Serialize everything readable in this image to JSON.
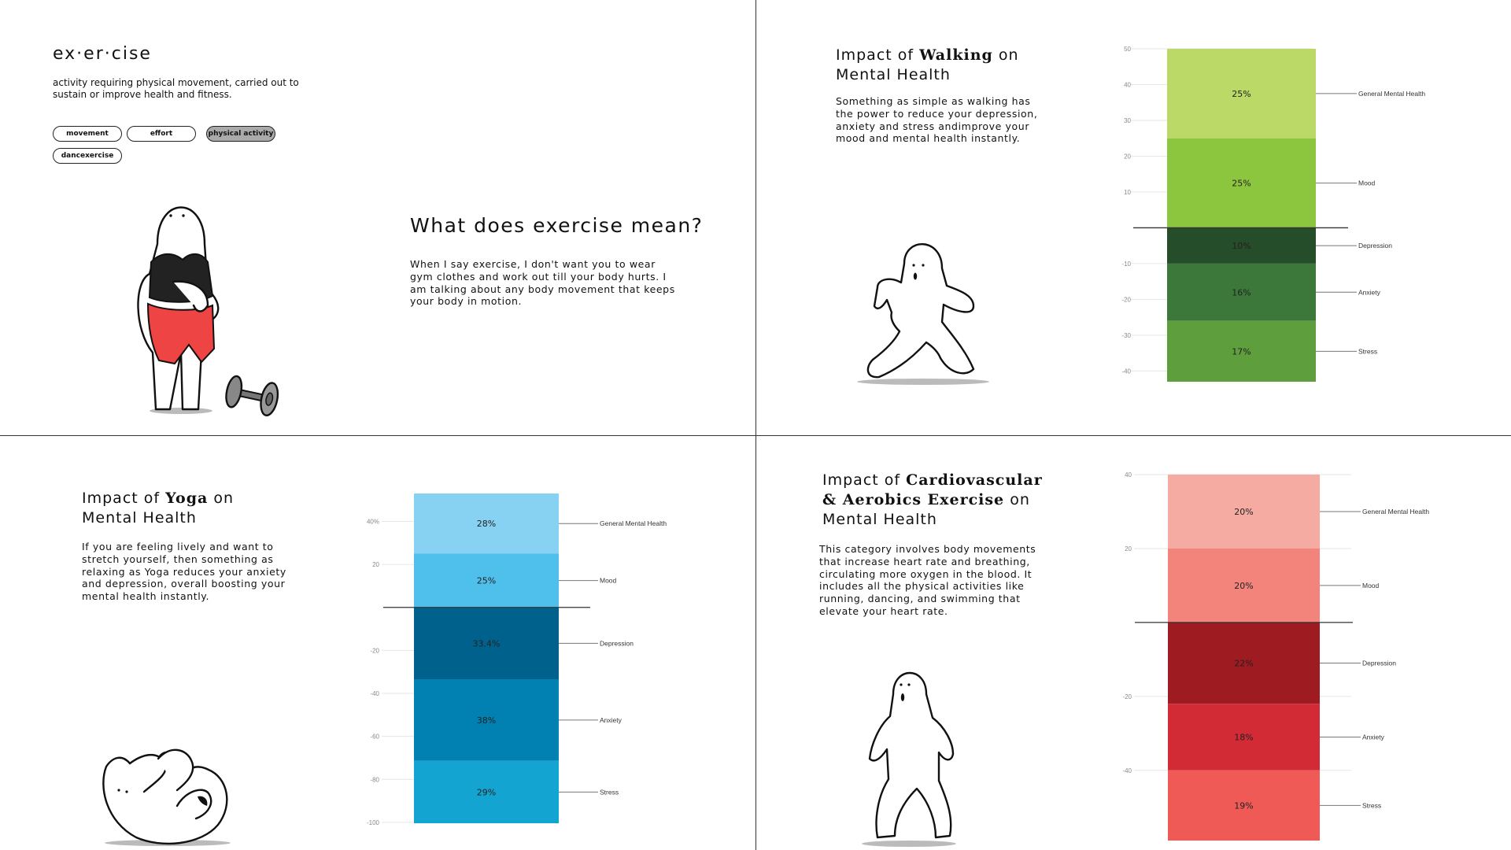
{
  "definition_panel": {
    "word": "ex·er·cise",
    "definition": "activity requiring physical movement, carried out to sustain or improve health and fitness.",
    "tags": [
      {
        "label": "movement",
        "active": false
      },
      {
        "label": "effort",
        "active": false
      },
      {
        "label": "physical activity",
        "active": true
      },
      {
        "label": "dancexercise",
        "active": false
      }
    ],
    "question": "What does exercise mean?",
    "answer": "When I say exercise, I don't want you to wear gym clothes and work out till your body hurts. I am talking about any body movement that keeps your body in motion."
  },
  "walking_panel": {
    "title_prefix": "Impact of",
    "title_bold": "Walking",
    "title_suffix": "on",
    "title_line2": "Mental Health",
    "description": "Something as simple as walking has the power to reduce your depression, anxiety and stress andimprove your mood and mental health instantly."
  },
  "yoga_panel": {
    "title_prefix": "Impact of",
    "title_bold": "Yoga",
    "title_suffix": "on",
    "title_line2": "Mental Health",
    "description": "If you are feeling lively and want to stretch yourself,  then something as relaxing as Yoga reduces your anxiety and depression, overall boosting your mental health instantly."
  },
  "cardio_panel": {
    "title_prefix": "Impact of",
    "title_bold": "Cardiovascular",
    "title_bold2": "& Aerobics Exercise",
    "title_suffix": "on",
    "title_line3": "Mental Health",
    "description": "This category involves body movements that increase heart rate and breathing, circulating more oxygen in the blood. It includes all the physical activities like running, dancing, and swimming that elevate your heart rate."
  },
  "colors": {
    "walking": [
      "#bad966",
      "#8cc63f",
      "#264d29",
      "#3b783a",
      "#5f9e3c"
    ],
    "yoga": [
      "#87d2f2",
      "#4fbfec",
      "#00618d",
      "#0081b1",
      "#14a4d2"
    ],
    "cardio": [
      "#f5aba2",
      "#f2847c",
      "#9e1b22",
      "#d22b36",
      "#ef5a57"
    ]
  },
  "chart_data": [
    {
      "type": "bar",
      "id": "walking",
      "categories": [
        "General Mental Health",
        "Mood",
        "Depression",
        "Anxiety",
        "Stress"
      ],
      "labels": [
        "25%",
        "25%",
        "10%",
        "16%",
        "17%"
      ],
      "segments": [
        [
          25,
          50
        ],
        [
          0,
          25
        ],
        [
          -10,
          0
        ],
        [
          -26,
          -10
        ],
        [
          -43,
          -26
        ]
      ],
      "yticks": [
        50,
        40,
        30,
        20,
        10,
        -10,
        -20,
        -30,
        -40
      ],
      "ylim": [
        -43,
        50
      ]
    },
    {
      "type": "bar",
      "id": "yoga",
      "categories": [
        "General Mental Health",
        "Mood",
        "Depression",
        "Anxiety",
        "Stress"
      ],
      "labels": [
        "28%",
        "25%",
        "33.4%",
        "38%",
        "29%"
      ],
      "segments": [
        [
          25,
          53
        ],
        [
          0,
          25
        ],
        [
          -33.4,
          0
        ],
        [
          -71.4,
          -33.4
        ],
        [
          -100.4,
          -71.4
        ]
      ],
      "yticks": [
        40,
        20,
        -20,
        -40,
        -60,
        -80,
        -100
      ],
      "ytick_labels": [
        "40%",
        "20",
        "-20",
        "-40",
        "-60",
        "-80",
        "-100"
      ],
      "ylim": [
        -100.4,
        53
      ]
    },
    {
      "type": "bar",
      "id": "cardio",
      "categories": [
        "General Mental Health",
        "Mood",
        "Depression",
        "Anxiety",
        "Stress"
      ],
      "labels": [
        "20%",
        "20%",
        "22%",
        "18%",
        "19%"
      ],
      "segments": [
        [
          20,
          40
        ],
        [
          0,
          20
        ],
        [
          -22,
          0
        ],
        [
          -40,
          -22
        ],
        [
          -59,
          -40
        ]
      ],
      "yticks": [
        40,
        20,
        -20,
        -40
      ],
      "ylim": [
        -59,
        40
      ]
    }
  ]
}
